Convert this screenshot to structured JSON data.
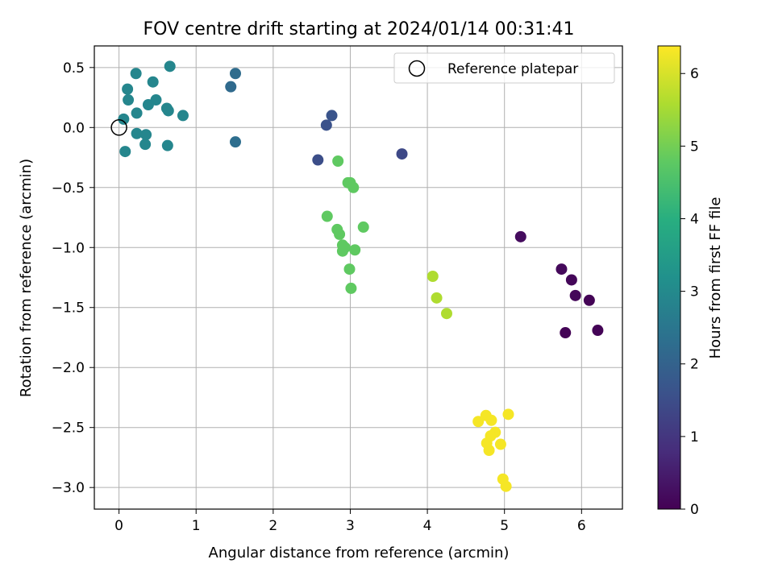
{
  "chart_data": {
    "type": "scatter",
    "title": "FOV centre drift starting at 2024/01/14 00:31:41",
    "xlabel": "Angular distance from reference (arcmin)",
    "ylabel": "Rotation from reference (arcmin)",
    "xlim": [
      -0.32,
      6.53
    ],
    "ylim": [
      -3.18,
      0.68
    ],
    "x_ticks": [
      0,
      1,
      2,
      3,
      4,
      5,
      6
    ],
    "y_ticks": [
      0.5,
      0.0,
      -0.5,
      -1.0,
      -1.5,
      -2.0,
      -2.5,
      -3.0
    ],
    "y_tick_labels": [
      "0.5",
      "0.0",
      "−0.5",
      "−1.0",
      "−1.5",
      "−2.0",
      "−2.5",
      "−3.0"
    ],
    "grid": true,
    "legend": {
      "placement": "upper-right",
      "entries": [
        "Reference platepar"
      ]
    },
    "reference_point": {
      "x": 0,
      "y": 0
    },
    "colorbar": {
      "label": "Hours from first FF file",
      "colormap": "viridis",
      "range": [
        0,
        6.38
      ],
      "ticks": [
        0,
        1,
        2,
        3,
        4,
        5,
        6
      ]
    },
    "points": [
      {
        "x": 5.21,
        "y": -0.91,
        "c": 0.2
      },
      {
        "x": 5.74,
        "y": -1.18,
        "c": 0.15
      },
      {
        "x": 5.87,
        "y": -1.27,
        "c": 0.1
      },
      {
        "x": 5.92,
        "y": -1.4,
        "c": 0.1
      },
      {
        "x": 6.1,
        "y": -1.44,
        "c": 0.05
      },
      {
        "x": 5.79,
        "y": -1.71,
        "c": 0.05
      },
      {
        "x": 6.21,
        "y": -1.69,
        "c": 0.05
      },
      {
        "x": 2.58,
        "y": -0.27,
        "c": 1.5
      },
      {
        "x": 2.69,
        "y": 0.02,
        "c": 1.6
      },
      {
        "x": 2.76,
        "y": 0.1,
        "c": 1.65
      },
      {
        "x": 3.67,
        "y": -0.22,
        "c": 1.4
      },
      {
        "x": 1.45,
        "y": 0.34,
        "c": 2.2
      },
      {
        "x": 1.51,
        "y": 0.45,
        "c": 2.25
      },
      {
        "x": 1.51,
        "y": -0.12,
        "c": 2.3
      },
      {
        "x": 0.66,
        "y": 0.51,
        "c": 2.9
      },
      {
        "x": 0.22,
        "y": 0.45,
        "c": 2.9
      },
      {
        "x": 0.44,
        "y": 0.38,
        "c": 2.9
      },
      {
        "x": 0.11,
        "y": 0.32,
        "c": 2.9
      },
      {
        "x": 0.12,
        "y": 0.23,
        "c": 2.9
      },
      {
        "x": 0.48,
        "y": 0.23,
        "c": 2.9
      },
      {
        "x": 0.38,
        "y": 0.19,
        "c": 2.9
      },
      {
        "x": 0.62,
        "y": 0.16,
        "c": 2.9
      },
      {
        "x": 0.64,
        "y": 0.14,
        "c": 2.9
      },
      {
        "x": 0.83,
        "y": 0.1,
        "c": 2.9
      },
      {
        "x": 0.23,
        "y": 0.12,
        "c": 2.9
      },
      {
        "x": 0.06,
        "y": 0.07,
        "c": 2.9
      },
      {
        "x": 0.23,
        "y": -0.05,
        "c": 2.9
      },
      {
        "x": 0.35,
        "y": -0.06,
        "c": 2.9
      },
      {
        "x": 0.34,
        "y": -0.14,
        "c": 2.9
      },
      {
        "x": 0.63,
        "y": -0.15,
        "c": 2.9
      },
      {
        "x": 0.08,
        "y": -0.2,
        "c": 2.9
      },
      {
        "x": 2.84,
        "y": -0.28,
        "c": 4.8
      },
      {
        "x": 2.97,
        "y": -0.46,
        "c": 4.8
      },
      {
        "x": 3.0,
        "y": -0.46,
        "c": 4.8
      },
      {
        "x": 3.04,
        "y": -0.5,
        "c": 4.8
      },
      {
        "x": 2.7,
        "y": -0.74,
        "c": 4.8
      },
      {
        "x": 3.17,
        "y": -0.83,
        "c": 4.8
      },
      {
        "x": 2.83,
        "y": -0.85,
        "c": 4.8
      },
      {
        "x": 2.86,
        "y": -0.89,
        "c": 4.8
      },
      {
        "x": 2.9,
        "y": -0.98,
        "c": 4.8
      },
      {
        "x": 2.93,
        "y": -1.0,
        "c": 4.8
      },
      {
        "x": 2.9,
        "y": -1.03,
        "c": 4.8
      },
      {
        "x": 3.06,
        "y": -1.02,
        "c": 4.8
      },
      {
        "x": 2.99,
        "y": -1.18,
        "c": 4.8
      },
      {
        "x": 3.01,
        "y": -1.34,
        "c": 4.8
      },
      {
        "x": 4.07,
        "y": -1.24,
        "c": 5.6
      },
      {
        "x": 4.12,
        "y": -1.42,
        "c": 5.6
      },
      {
        "x": 4.25,
        "y": -1.55,
        "c": 5.6
      },
      {
        "x": 4.66,
        "y": -2.45,
        "c": 6.3
      },
      {
        "x": 4.76,
        "y": -2.4,
        "c": 6.3
      },
      {
        "x": 4.83,
        "y": -2.44,
        "c": 6.3
      },
      {
        "x": 5.05,
        "y": -2.39,
        "c": 6.3
      },
      {
        "x": 4.88,
        "y": -2.54,
        "c": 6.3
      },
      {
        "x": 4.82,
        "y": -2.57,
        "c": 6.3
      },
      {
        "x": 4.77,
        "y": -2.63,
        "c": 6.3
      },
      {
        "x": 4.95,
        "y": -2.64,
        "c": 6.3
      },
      {
        "x": 4.8,
        "y": -2.69,
        "c": 6.3
      },
      {
        "x": 4.98,
        "y": -2.93,
        "c": 6.3
      },
      {
        "x": 5.02,
        "y": -2.99,
        "c": 6.3
      }
    ]
  }
}
